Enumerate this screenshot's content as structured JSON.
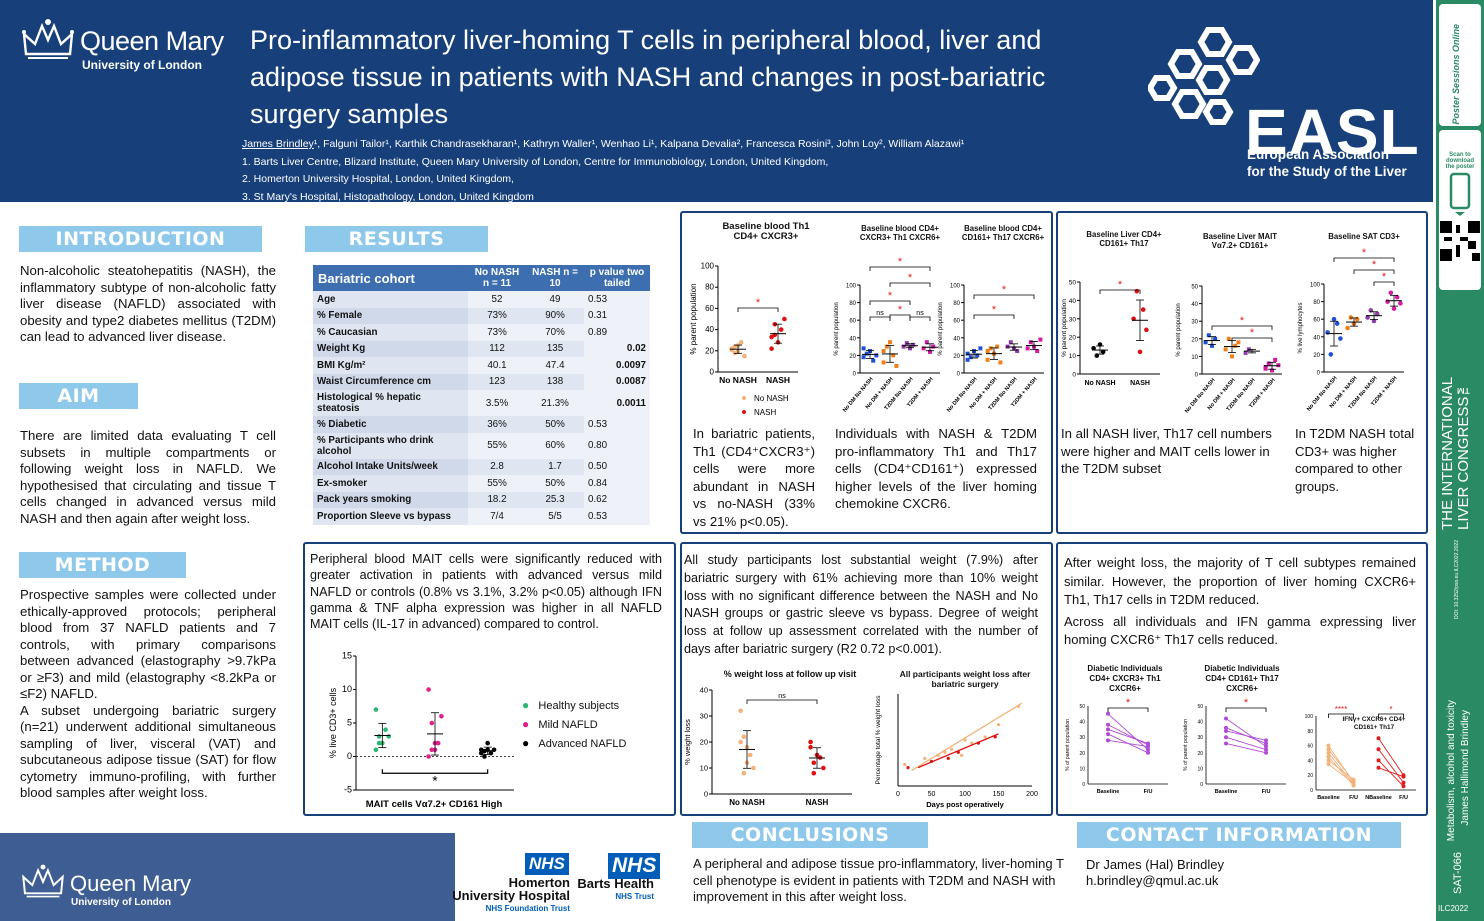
{
  "header": {
    "institution": "Queen Mary",
    "university": "University of London",
    "title": "Pro-inflammatory liver-homing T cells in peripheral blood, liver and adipose tissue in patients with NASH and changes in post-bariatric surgery samples",
    "author_main": "James Brindley",
    "authors_rest": "¹, Falguni Tailor¹, Karthik Chandrasekharan¹, Kathryn Waller¹, Wenhao Li¹, Kalpana Devalia², Francesca Rosini³, John Loy²,  William Alazawi¹",
    "affiliations": [
      "1.  Barts Liver Centre, Blizard Institute, Queen Mary University of London, Centre for Immunobiology, London, United Kingdom,",
      "2.  Homerton University Hospital, London, United Kingdom,",
      "3.  St Mary's Hospital, Histopathology, London, United Kingdom"
    ]
  },
  "easl": {
    "acronym": "EASL",
    "name_line1": "European Association",
    "name_line2": "for the Study of the Liver"
  },
  "sidebar": {
    "scan_text": "Scan to download the poster",
    "congress": "THE INTERNATIONAL LIVER CONGRESS™",
    "doi": "DOI: 10.3252/pso.eu.ILC2022.2022",
    "track": "Metabolism, alcohol and toxicity",
    "author": "James Hallimond Brindley",
    "code": "SAT-066",
    "congress_code": "ILC2022",
    "brand": "Poster Sessions Online"
  },
  "intro": {
    "heading": "INTRODUCTION",
    "text": "Non-alcoholic steatohepatitis (NASH), the inflammatory subtype of non-alcoholic fatty liver disease (NAFLD) associated with obesity and type2 diabetes mellitus (T2DM) can lead to advanced liver disease."
  },
  "aim": {
    "heading": "AIM",
    "text": "There are limited data evaluating T cell subsets in multiple compartments or following weight loss in NAFLD. We hypothesised that circulating and tissue T cells changed in advanced versus mild NASH and then again after weight loss."
  },
  "method": {
    "heading": "METHOD",
    "text1": "Prospective samples were collected under ethically-approved protocols; peripheral blood from 37 NAFLD patients and 7 controls, with primary comparisons between advanced (elastography >9.7kPa or ≥F3) and mild (elastography <8.2kPa or ≤F2) NAFLD.",
    "text2": "A subset undergoing bariatric surgery (n=21) underwent additional simultaneous sampling of liver, visceral (VAT) and subcutaneous adipose tissue (SAT) for flow cytometry immuno-profiling, with further blood samples after weight loss."
  },
  "results": {
    "heading": "RESULTS",
    "table": {
      "headers": [
        "Bariatric cohort",
        "No NASH n = 11",
        "NASH n = 10",
        "p value two tailed"
      ],
      "rows": [
        [
          "Age",
          "52",
          "49",
          "0.53",
          ""
        ],
        [
          "% Female",
          "73%",
          "90%",
          "0.31",
          ""
        ],
        [
          "% Caucasian",
          "73%",
          "70%",
          "0.89",
          ""
        ],
        [
          "Weight Kg",
          "112",
          "135",
          "",
          "0.02"
        ],
        [
          "BMI Kg/m²",
          "40.1",
          "47.4",
          "",
          "0.0097"
        ],
        [
          "Waist Circumference cm",
          "123",
          "138",
          "",
          "0.0087"
        ],
        [
          "Histological %  hepatic steatosis",
          "3.5%",
          "21.3%",
          "",
          "0.0011"
        ],
        [
          "% Diabetic",
          "36%",
          "50%",
          "0.53",
          ""
        ],
        [
          "% Participants who drink alcohol",
          "55%",
          "60%",
          "0.80",
          ""
        ],
        [
          "Alcohol Intake  Units/week",
          "2.8",
          "1.7",
          "0.50",
          ""
        ],
        [
          "Ex-smoker",
          "55%",
          "50%",
          "0.84",
          ""
        ],
        [
          "Pack years smoking",
          "18.2",
          "25.3",
          "0.62",
          ""
        ],
        [
          "Proportion Sleeve vs bypass",
          "7/4",
          "5/5",
          "0.53",
          ""
        ]
      ]
    }
  },
  "mait": {
    "text": "Peripheral blood MAIT cells were significantly reduced with greater activation in patients with advanced versus mild NAFLD or controls (0.8% vs 3.1%, 3.2% p<0.05) although IFN gamma & TNF alpha expression was higher in all NAFLD MAIT cells (IL-17 in advanced) compared to control.",
    "legend": [
      "Healthy subjects",
      "Mild NAFLD",
      "Advanced NAFLD"
    ]
  },
  "panel1": {
    "cap1": "In bariatric patients, Th1 (CD4⁺CXCR3⁺) cells were more abundant in NASH vs no-NASH (33% vs 21% p<0.05).",
    "cap2": "Individuals with NASH & T2DM pro-inflammatory Th1 and Th17 cells (CD4⁺CD161⁺) expressed higher levels of the liver homing chemokine CXCR6."
  },
  "panel2": {
    "cap1": "In all NASH liver, Th17 cell numbers were higher and MAIT cells lower in the T2DM subset",
    "cap2": "In T2DM NASH total CD3+ was higher compared to other groups."
  },
  "panel3": {
    "text": "All study participants lost substantial weight (7.9%) after bariatric surgery with 61% achieving more than 10% weight loss with no significant difference between the NASH and No NASH groups or gastric sleeve vs bypass. Degree of weight loss at follow up assessment correlated with the number of days after bariatric surgery (R2 0.72 p<0.001)."
  },
  "panel4": {
    "text1": "After weight loss, the majority of T cell subtypes remained similar. However, the proportion of liver homing CXCR6+ Th1, Th17 cells in T2DM reduced.",
    "text2": "Across all individuals and IFN gamma expressing liver homing CXCR6⁺ Th17 cells reduced."
  },
  "conclusions": {
    "heading": "CONCLUSIONS",
    "text": "A peripheral and adipose tissue pro-inflammatory, liver-homing T cell phenotype is evident in patients with T2DM and NASH with improvement in this after weight loss."
  },
  "contact": {
    "heading": "CONTACT INFORMATION",
    "name": "Dr James (Hal) Brindley",
    "email": "h.brindley@qmul.ac.uk"
  },
  "footer": {
    "nhs": "NHS",
    "homerton1": "Homerton",
    "homerton2": "University Hospital",
    "homerton3": "NHS Foundation Trust",
    "barts1": "Barts Health",
    "barts2": "NHS Trust"
  },
  "chart_data": [
    {
      "type": "scatter",
      "title": "Baseline blood Th1 CD4+ CXCR3+",
      "ylabel": "% parent population",
      "ylim": [
        0,
        100
      ],
      "categories": [
        "No NASH",
        "NASH"
      ],
      "series": [
        {
          "name": "No NASH",
          "values": [
            21,
            18,
            25,
            28,
            15,
            22,
            24,
            19
          ]
        },
        {
          "name": "NASH",
          "values": [
            33,
            45,
            28,
            40,
            50,
            22,
            35
          ]
        }
      ],
      "legend": [
        "No NASH",
        "NASH"
      ],
      "annotation": "*"
    },
    {
      "type": "scatter",
      "title": "Baseline blood CD4+ CXCR3+ Th1 CXCR6+",
      "ylabel": "% parent population",
      "ylim": [
        0,
        100
      ],
      "categories": [
        "No DM No NASH",
        "No DM + NASH",
        "T2DM No NASH",
        "T2DM + NASH"
      ],
      "annotations": [
        "ns",
        "ns",
        "*",
        "*",
        "*",
        "*"
      ]
    },
    {
      "type": "scatter",
      "title": "Baseline blood CD4+ CD161+ Th17 CXCR6+",
      "ylabel": "% parent population",
      "ylim": [
        0,
        100
      ],
      "categories": [
        "No DM No NASH",
        "No DM + NASH",
        "T2DM No NASH",
        "T2DM + NASH"
      ],
      "annotations": [
        "*",
        "*"
      ]
    },
    {
      "type": "scatter",
      "title": "Baseline Liver CD4+ CD161+ Th17",
      "ylabel": "% parent population",
      "ylim": [
        0,
        50
      ],
      "categories": [
        "No NASH",
        "NASH"
      ],
      "annotation": "*"
    },
    {
      "type": "scatter",
      "title": "Baseline Liver MAIT Vα7.2+ CD161+",
      "ylabel": "% parent population",
      "ylim": [
        0,
        50
      ],
      "categories": [
        "No DM No NASH",
        "No DM + NASH",
        "T2DM No NASH",
        "T2DM + NASH"
      ],
      "annotations": [
        "*",
        "*"
      ]
    },
    {
      "type": "scatter",
      "title": "Baseline SAT CD3+",
      "ylabel": "% live lymphocytes",
      "ylim": [
        0,
        100
      ],
      "categories": [
        "No DM No NASH",
        "No DM + NASH",
        "T2DM No NASH",
        "T2DM + NASH"
      ],
      "annotations": [
        "*",
        "*",
        "*"
      ]
    },
    {
      "type": "scatter",
      "title": "",
      "xlabel": "MAIT cells Vα7.2+ CD161 High",
      "ylabel": "% live CD3+ cells",
      "ylim": [
        -5,
        15
      ],
      "categories": [
        "Healthy subjects",
        "Mild NAFLD",
        "Advanced NAFLD"
      ],
      "annotation": "*"
    },
    {
      "type": "scatter",
      "title": "% weight loss at follow up visit",
      "ylabel": "% weight loss",
      "ylim": [
        0,
        40
      ],
      "categories": [
        "No NASH",
        "NASH"
      ],
      "annotation": "ns"
    },
    {
      "type": "scatter",
      "title": "All participants weight loss after bariatric surgery",
      "xlabel": "Days post operatively",
      "ylabel": "Percentage total % weight loss",
      "xlim": [
        0,
        200
      ]
    },
    {
      "type": "line",
      "title": "Diabetic Individuals CD4+ CXCR3+ Th1 CXCR6+",
      "ylabel": "% of parent population",
      "ylim": [
        0,
        50
      ],
      "categories": [
        "Baseline",
        "F/U"
      ],
      "annotation": "*"
    },
    {
      "type": "line",
      "title": "Diabetic Individuals CD4+ CD161+ Th17 CXCR6+",
      "ylabel": "% of parent population",
      "ylim": [
        0,
        50
      ],
      "categories": [
        "Baseline",
        "F/U"
      ],
      "annotation": "*"
    },
    {
      "type": "line",
      "title": "IFNγ+ CXCR6+ CD4+ CD161+ Th17",
      "ylim": [
        0,
        100
      ],
      "categories": [
        "Baseline",
        "F/U",
        "NBaseline",
        "F/U"
      ],
      "annotations": [
        "****",
        "*"
      ]
    }
  ]
}
